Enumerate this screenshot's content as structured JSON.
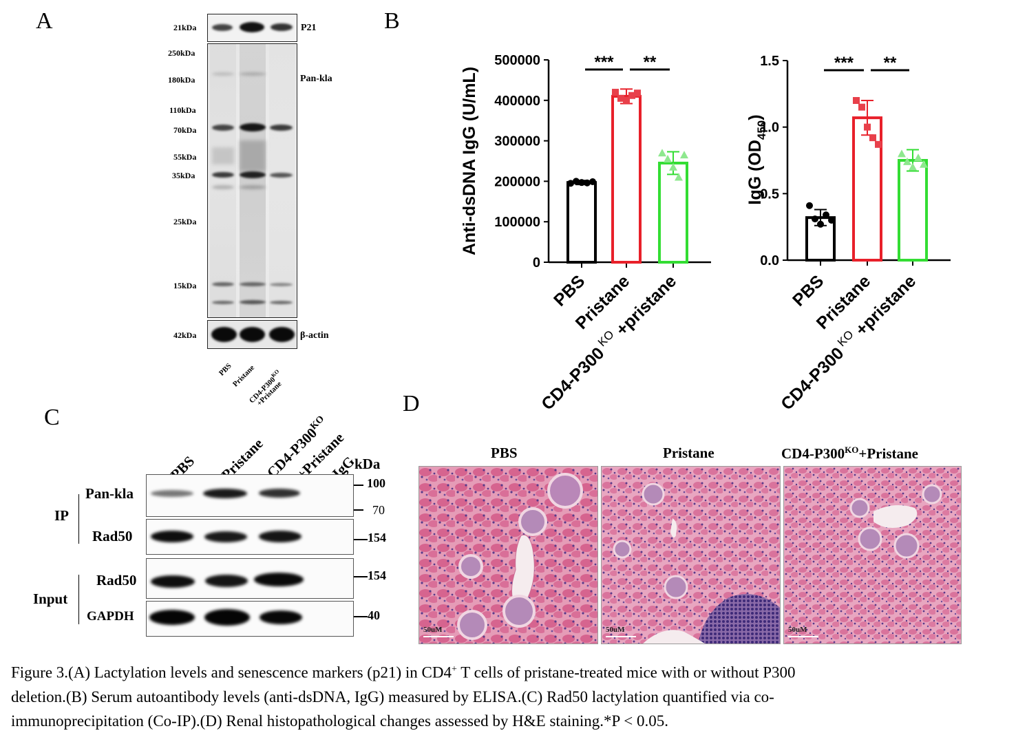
{
  "panels": {
    "A": "A",
    "B": "B",
    "C": "C",
    "D": "D"
  },
  "panelA": {
    "markers": [
      "21kDa",
      "250kDa",
      "180kDa",
      "110kDa",
      "70kDa",
      "55kDa",
      "35kDa",
      "25kDa",
      "15kDa",
      "42kDa"
    ],
    "proteins": {
      "p21": "P21",
      "pankla": "Pan-kla",
      "actin": "β-actin"
    },
    "lanes": [
      "PBS",
      "Pristane",
      "CD4-P300",
      "KO",
      "+Pristane"
    ]
  },
  "panelC": {
    "lanes": [
      "PBS",
      "Pristane",
      "CD4-P300",
      "KO",
      "+Pristane",
      "IgG"
    ],
    "kda": "kDa",
    "ip": "IP",
    "input": "Input",
    "rows": [
      "Pan-kla",
      "Rad50",
      "Rad50",
      "GAPDH"
    ],
    "mw": [
      "100",
      "70",
      "154",
      "154",
      "40"
    ]
  },
  "panelD": {
    "titles": [
      "PBS",
      "Pristane",
      "CD4-P300",
      "KO",
      "+Pristane"
    ],
    "scale": "50uM"
  },
  "chart_data": [
    {
      "type": "bar",
      "ylabel": "Anti-dsDNA IgG (U/mL)",
      "ylim": [
        0,
        500000
      ],
      "yticks": [
        "0",
        "100000",
        "200000",
        "300000",
        "400000",
        "500000"
      ],
      "categories": [
        "PBS",
        "Pristane",
        "CD4-P300 KO +pristane"
      ],
      "xlabels": [
        "PBS",
        "Pristane",
        "CD4-P300",
        "KO",
        "+pristane"
      ],
      "values": [
        197000,
        410000,
        245000
      ],
      "errors": [
        5000,
        18000,
        28000
      ],
      "points": [
        [
          195000,
          200000,
          197000,
          196000,
          199000
        ],
        [
          420000,
          405000,
          400000,
          412000,
          418000
        ],
        [
          270000,
          255000,
          235000,
          210000,
          265000
        ]
      ],
      "colors": [
        "#000000",
        "#e8202a",
        "#33dd33"
      ],
      "significance": [
        {
          "label": "***",
          "from": 0,
          "to": 1
        },
        {
          "label": "**",
          "from": 1,
          "to": 2
        }
      ]
    },
    {
      "type": "bar",
      "ylabel": "IgG (OD450)",
      "ylabel_main": "IgG (OD",
      "ylabel_sub": "450",
      "ylabel_end": ")",
      "ylim": [
        0,
        1.5
      ],
      "yticks": [
        "0.0",
        "0.5",
        "1.0",
        "1.5"
      ],
      "categories": [
        "PBS",
        "Pristane",
        "CD4-P300 KO +pristane"
      ],
      "xlabels": [
        "PBS",
        "Pristane",
        "CD4-P300",
        "KO",
        "+pristane"
      ],
      "values": [
        0.32,
        1.07,
        0.75
      ],
      "errors": [
        0.06,
        0.13,
        0.08
      ],
      "points": [
        [
          0.41,
          0.31,
          0.27,
          0.34,
          0.3
        ],
        [
          1.2,
          1.15,
          1.0,
          0.92,
          0.87
        ],
        [
          0.8,
          0.74,
          0.7,
          0.77,
          0.72
        ]
      ],
      "colors": [
        "#000000",
        "#e8202a",
        "#33dd33"
      ],
      "significance": [
        {
          "label": "***",
          "from": 0,
          "to": 1
        },
        {
          "label": "**",
          "from": 1,
          "to": 2
        }
      ]
    }
  ],
  "caption": {
    "line1a": "Figure 3.(A) Lactylation levels and senescence markers (p21) in CD4",
    "line1sup": "+",
    "line1b": " T cells of pristane-treated mice with or without P300",
    "line2": "deletion.(B) Serum autoantibody levels (anti-dsDNA, IgG) measured by ELISA.(C) Rad50 lactylation quantified via co-",
    "line3": "immunoprecipitation (Co-IP).(D) Renal histopathological changes assessed by H&E staining.*P < 0.05."
  }
}
